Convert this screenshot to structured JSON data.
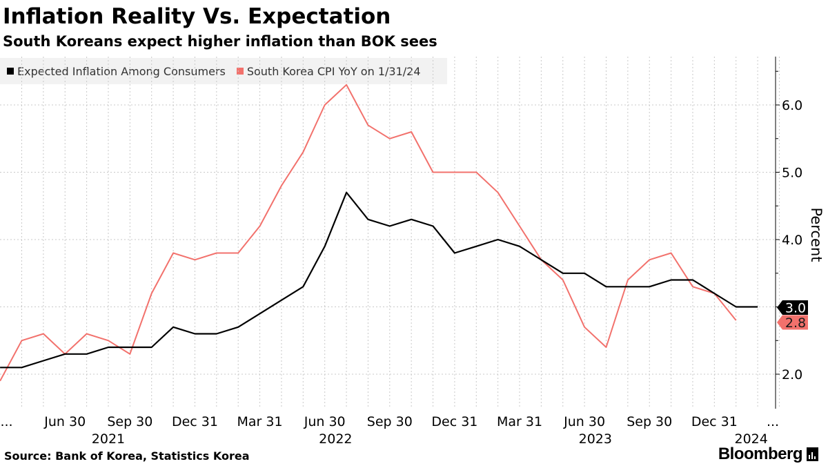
{
  "header": {
    "title": "Inflation Reality Vs. Expectation",
    "subtitle": "South Koreans expect higher inflation than BOK sees"
  },
  "legend": [
    {
      "label": "Expected Inflation Among Consumers",
      "color": "#000000"
    },
    {
      "label": "South Korea CPI YoY on 1/31/24",
      "color": "#f2716c"
    }
  ],
  "footer": {
    "source": "Source: Bank of Korea, Statistics Korea",
    "brand": "Bloomberg"
  },
  "chart_data": {
    "type": "line",
    "ylabel": "Percent",
    "ylim": [
      1.5,
      6.7
    ],
    "y_ticks": [
      2.0,
      3.0,
      4.0,
      5.0,
      6.0
    ],
    "y_tick_labels": [
      "2.0",
      "3.0",
      "4.0",
      "5.0",
      "6.0"
    ],
    "x_start": 0,
    "x_end": 36,
    "x_tick_positions": [
      -0.7,
      2,
      5,
      8,
      11,
      14,
      17,
      20,
      23,
      26,
      29,
      32,
      34.7
    ],
    "x_tick_labels": [
      "...",
      "Jun 30",
      "Sep 30",
      "Dec 31",
      "Mar 31",
      "Jun 30",
      "Sep 30",
      "Dec 31",
      "Mar 31",
      "Jun 30",
      "Sep 30",
      "Dec 31",
      "..."
    ],
    "year_labels": [
      {
        "pos": 4,
        "label": "2021"
      },
      {
        "pos": 14.5,
        "label": "2022"
      },
      {
        "pos": 26.5,
        "label": "2023"
      },
      {
        "pos": 33.7,
        "label": "2024"
      }
    ],
    "series": [
      {
        "name": "Expected Inflation Among Consumers",
        "color": "#000000",
        "x": [
          -1,
          0,
          1,
          2,
          3,
          4,
          5,
          6,
          7,
          8,
          9,
          10,
          11,
          12,
          13,
          14,
          15,
          16,
          17,
          18,
          19,
          20,
          21,
          22,
          23,
          24,
          25,
          26,
          27,
          28,
          29,
          30,
          31,
          32,
          33,
          34
        ],
        "values": [
          2.1,
          2.1,
          2.2,
          2.3,
          2.3,
          2.4,
          2.4,
          2.4,
          2.7,
          2.6,
          2.6,
          2.7,
          2.9,
          3.1,
          3.3,
          3.9,
          4.7,
          4.3,
          4.2,
          4.3,
          4.2,
          3.8,
          3.9,
          4.0,
          3.9,
          3.7,
          3.5,
          3.5,
          3.3,
          3.3,
          3.3,
          3.4,
          3.4,
          3.2,
          3.0,
          3.0
        ],
        "end_label": "3.0"
      },
      {
        "name": "South Korea CPI YoY on 1/31/24",
        "color": "#f2716c",
        "x": [
          -1,
          0,
          1,
          2,
          3,
          4,
          5,
          6,
          7,
          8,
          9,
          10,
          11,
          12,
          13,
          14,
          15,
          16,
          17,
          18,
          19,
          20,
          21,
          22,
          23,
          24,
          25,
          26,
          27,
          28,
          29,
          30,
          31,
          32,
          33
        ],
        "values": [
          1.9,
          2.5,
          2.6,
          2.3,
          2.6,
          2.5,
          2.3,
          3.2,
          3.8,
          3.7,
          3.8,
          3.8,
          4.2,
          4.8,
          5.3,
          6.0,
          6.3,
          5.7,
          5.5,
          5.6,
          5.0,
          5.0,
          5.0,
          4.7,
          4.2,
          3.7,
          3.4,
          2.7,
          2.4,
          3.4,
          3.7,
          3.8,
          3.3,
          3.2,
          2.8
        ],
        "end_label": "2.8"
      }
    ]
  }
}
